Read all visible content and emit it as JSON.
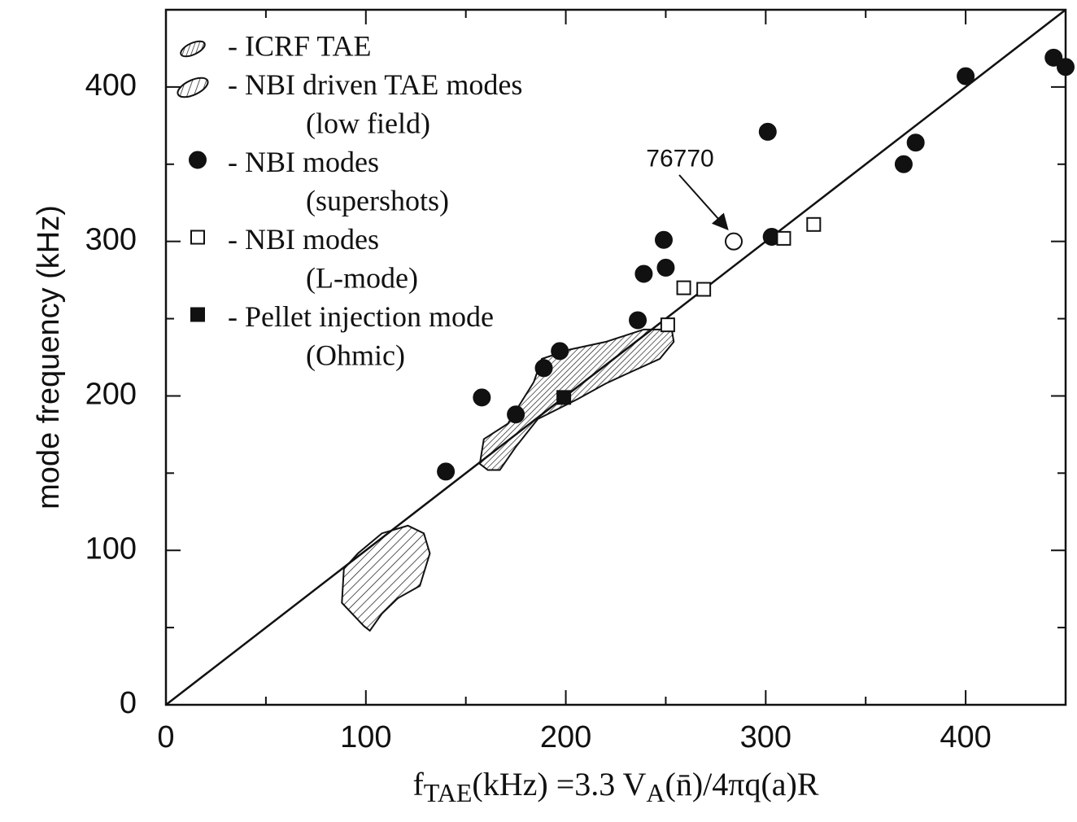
{
  "chart_data": {
    "type": "scatter",
    "y_label": "mode frequency (kHz)",
    "x_label": [
      "f",
      "TAE",
      "(kHz) =3.3 V",
      "A",
      "(n̄)/4πq(a)R"
    ],
    "xlim": [
      0,
      450
    ],
    "ylim": [
      0,
      450
    ],
    "xticks": [
      0,
      100,
      200,
      300,
      400
    ],
    "yticks": [
      0,
      100,
      200,
      300,
      400
    ],
    "minor_xticks": [
      50,
      150,
      250,
      350
    ],
    "minor_yticks": [
      50,
      150,
      250,
      350
    ],
    "reference_line": {
      "x": [
        0,
        450
      ],
      "y": [
        0,
        450
      ]
    },
    "regions": [
      {
        "name": "- ICRF TAE",
        "hatch": "dense",
        "x": [
          157,
          159,
          171,
          184,
          188,
          202,
          220,
          239,
          253,
          254,
          247,
          230,
          220,
          206,
          186,
          175,
          167,
          161
        ],
        "y": [
          156,
          172,
          182,
          209,
          224,
          230,
          235,
          243,
          243,
          235,
          224,
          214,
          208,
          198,
          185,
          167,
          152,
          152
        ]
      },
      {
        "name": "- NBI driven TAE modes",
        "subname": "(low field)",
        "hatch": "single",
        "x": [
          99,
          88,
          89,
          96,
          108,
          121,
          129,
          132,
          127,
          116,
          108,
          102
        ],
        "y": [
          51,
          66,
          88,
          98,
          111,
          116,
          111,
          98,
          77,
          69,
          59,
          48
        ]
      }
    ],
    "series": [
      {
        "name": "- NBI modes",
        "subname": "(supershots)",
        "marker": "circle-filled",
        "x": [
          140,
          158,
          175,
          189,
          197,
          236,
          239,
          249,
          250,
          301,
          303,
          369,
          375,
          400,
          444,
          450
        ],
        "values": [
          151,
          199,
          188,
          218,
          229,
          249,
          279,
          301,
          283,
          371,
          303,
          350,
          364,
          407,
          419,
          413
        ]
      },
      {
        "name": "- NBI modes",
        "subname": "(L-mode)",
        "marker": "square-open",
        "x": [
          251,
          259,
          269,
          309,
          324
        ],
        "values": [
          246,
          270,
          269,
          302,
          311
        ]
      },
      {
        "name": "- Pellet injection mode",
        "subname": "(Ohmic)",
        "marker": "square-filled",
        "x": [
          199
        ],
        "values": [
          199
        ]
      },
      {
        "marker": "circle-open",
        "x": [
          284
        ],
        "values": [
          300
        ],
        "annotation": "76770"
      }
    ]
  }
}
